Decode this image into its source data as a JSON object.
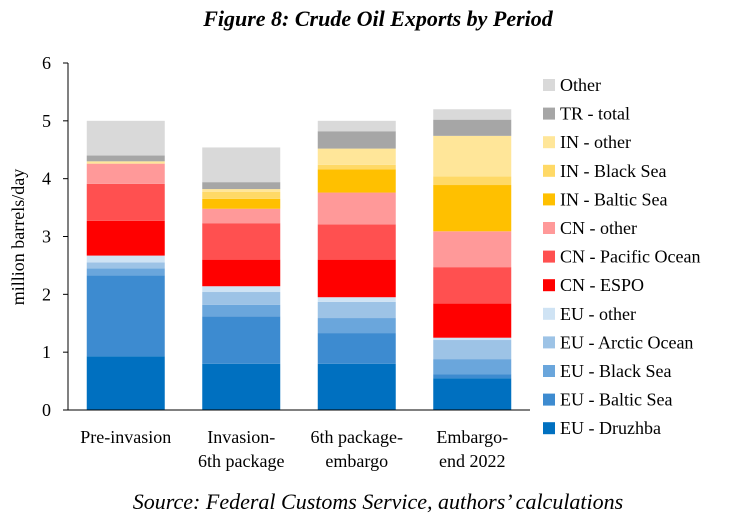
{
  "chart_data": {
    "type": "bar",
    "stacked": true,
    "title": "Figure 8: Crude Oil Exports by Period",
    "source": "Source: Federal Customs Service, authors’ calculations",
    "ylabel": "million barrels/day",
    "xlabel": "",
    "ylim": [
      0,
      6
    ],
    "yticks": [
      0,
      1,
      2,
      3,
      4,
      5,
      6
    ],
    "grid": false,
    "legend_position": "right",
    "categories": [
      [
        "Pre-invasion"
      ],
      [
        "Invasion-",
        "6th package"
      ],
      [
        "6th package-",
        "embargo"
      ],
      [
        "Embargo-",
        "end 2022"
      ]
    ],
    "series": [
      {
        "name": "EU - Druzhba",
        "color": "#0070C0",
        "values": [
          0.93,
          0.8,
          0.8,
          0.55
        ]
      },
      {
        "name": "EU - Baltic Sea",
        "color": "#3D8BD0",
        "values": [
          1.4,
          0.82,
          0.53,
          0.07
        ]
      },
      {
        "name": "EU - Black Sea",
        "color": "#6AA6DC",
        "values": [
          0.12,
          0.2,
          0.26,
          0.26
        ]
      },
      {
        "name": "EU - Arctic Ocean",
        "color": "#9DC3E6",
        "values": [
          0.1,
          0.22,
          0.28,
          0.33
        ]
      },
      {
        "name": "EU - other",
        "color": "#CFE3F4",
        "values": [
          0.12,
          0.1,
          0.08,
          0.04
        ]
      },
      {
        "name": "CN - ESPO",
        "color": "#FF0000",
        "values": [
          0.6,
          0.46,
          0.65,
          0.59
        ]
      },
      {
        "name": "CN - Pacific Ocean",
        "color": "#FF5050",
        "values": [
          0.64,
          0.63,
          0.61,
          0.63
        ]
      },
      {
        "name": "CN - other",
        "color": "#FF9999",
        "values": [
          0.35,
          0.25,
          0.55,
          0.62
        ]
      },
      {
        "name": "IN - Baltic Sea",
        "color": "#FFC000",
        "values": [
          0.0,
          0.17,
          0.4,
          0.8
        ]
      },
      {
        "name": "IN - Black Sea",
        "color": "#FFD966",
        "values": [
          0.0,
          0.12,
          0.08,
          0.15
        ]
      },
      {
        "name": "IN - other",
        "color": "#FFE699",
        "values": [
          0.04,
          0.05,
          0.28,
          0.7
        ]
      },
      {
        "name": "TR - total",
        "color": "#A6A6A6",
        "values": [
          0.1,
          0.12,
          0.3,
          0.28
        ]
      },
      {
        "name": "Other",
        "color": "#D9D9D9",
        "values": [
          0.6,
          0.6,
          0.18,
          0.18
        ]
      }
    ]
  }
}
